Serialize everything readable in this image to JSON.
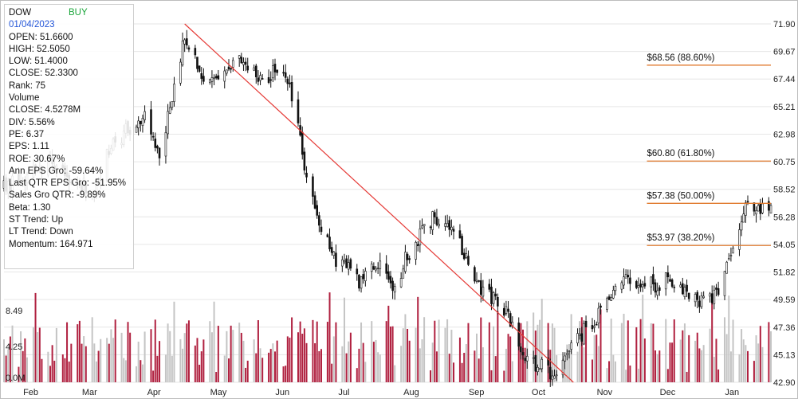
{
  "header": {
    "symbol": "DOW",
    "signal": "BUY",
    "date": "01/04/2023"
  },
  "info_lines": [
    "OPEN: 51.6600",
    "HIGH: 52.5050",
    "LOW: 51.4000",
    "CLOSE: 52.3300",
    "Rank: 75",
    "Volume",
    "CLOSE: 4.5278M",
    "DIV: 5.56%",
    "PE: 6.37",
    "EPS: 1.11",
    "ROE: 30.67%",
    "Ann EPS Gro: -59.64%",
    "Last QTR EPS Gro: -51.95%",
    "Sales Gro QTR: -9.89%",
    "Beta: 1.30",
    "ST Trend: Up",
    "LT Trend: Down",
    "Momentum: 164.971"
  ],
  "colors": {
    "grid": "#e6e6e6",
    "candle": "#111111",
    "trendline": "#e53935",
    "fib": "#e07a2e",
    "vol_down": "#b0203f",
    "vol_up": "#c4c4c4"
  },
  "chart_data": {
    "type": "candlestick",
    "ylim": [
      42.9,
      71.9
    ],
    "price_ticks": [
      "71.90",
      "69.67",
      "67.44",
      "65.21",
      "62.98",
      "60.75",
      "58.52",
      "56.28",
      "54.05",
      "51.82",
      "49.59",
      "47.36",
      "45.13",
      "42.90"
    ],
    "volume_ticks": [
      "8.49",
      "4.25",
      "0.0M"
    ],
    "volume_ylim": [
      0,
      12.7
    ],
    "months": [
      "Feb",
      "Mar",
      "Apr",
      "May",
      "Jun",
      "Jul",
      "Aug",
      "Sep",
      "Oct",
      "Nov",
      "Dec",
      "Jan"
    ],
    "x_range": [
      "2022-01-24",
      "2023-01-24"
    ],
    "month_dates": [
      "2022-02-01",
      "2022-03-01",
      "2022-04-01",
      "2022-05-01",
      "2022-06-01",
      "2022-07-01",
      "2022-08-01",
      "2022-09-01",
      "2022-10-01",
      "2022-11-01",
      "2022-12-01",
      "2023-01-01"
    ],
    "price_path": [
      [
        "2022-01-24",
        58.6
      ],
      [
        "2022-02-15",
        60.5
      ],
      [
        "2022-03-08",
        58.3
      ],
      [
        "2022-03-15",
        62.0
      ],
      [
        "2022-04-01",
        64.6
      ],
      [
        "2022-04-08",
        61.0
      ],
      [
        "2022-04-20",
        71.2
      ],
      [
        "2022-05-01",
        66.8
      ],
      [
        "2022-05-15",
        68.8
      ],
      [
        "2022-05-28",
        67.5
      ],
      [
        "2022-06-06",
        68.4
      ],
      [
        "2022-06-14",
        63.0
      ],
      [
        "2022-06-17",
        59.2
      ],
      [
        "2022-06-23",
        55.5
      ],
      [
        "2022-07-01",
        52.8
      ],
      [
        "2022-07-12",
        51.2
      ],
      [
        "2022-07-20",
        52.6
      ],
      [
        "2022-07-28",
        50.5
      ],
      [
        "2022-08-05",
        53.5
      ],
      [
        "2022-08-16",
        56.2
      ],
      [
        "2022-08-26",
        55.5
      ],
      [
        "2022-09-06",
        51.0
      ],
      [
        "2022-09-20",
        48.4
      ],
      [
        "2022-09-30",
        45.0
      ],
      [
        "2022-10-12",
        43.4
      ],
      [
        "2022-10-28",
        47.2
      ],
      [
        "2022-11-05",
        48.6
      ],
      [
        "2022-11-15",
        51.5
      ],
      [
        "2022-11-25",
        50.6
      ],
      [
        "2022-12-06",
        51.2
      ],
      [
        "2022-12-19",
        49.4
      ],
      [
        "2022-12-30",
        50.2
      ],
      [
        "2023-01-05",
        53.8
      ],
      [
        "2023-01-13",
        57.8
      ],
      [
        "2023-01-19",
        56.8
      ],
      [
        "2023-01-23",
        57.3
      ]
    ],
    "trendline": {
      "from": [
        "2022-04-20",
        71.9
      ],
      "to": [
        "2022-10-22",
        42.9
      ]
    },
    "fib_levels": [
      {
        "label": "$68.56 (88.60%)",
        "value": 68.56
      },
      {
        "label": "$60.80 (61.80%)",
        "value": 60.8
      },
      {
        "label": "$57.38 (50.00%)",
        "value": 57.38
      },
      {
        "label": "$53.97 (38.20%)",
        "value": 53.97
      }
    ],
    "fib_start_date": "2022-11-26"
  }
}
